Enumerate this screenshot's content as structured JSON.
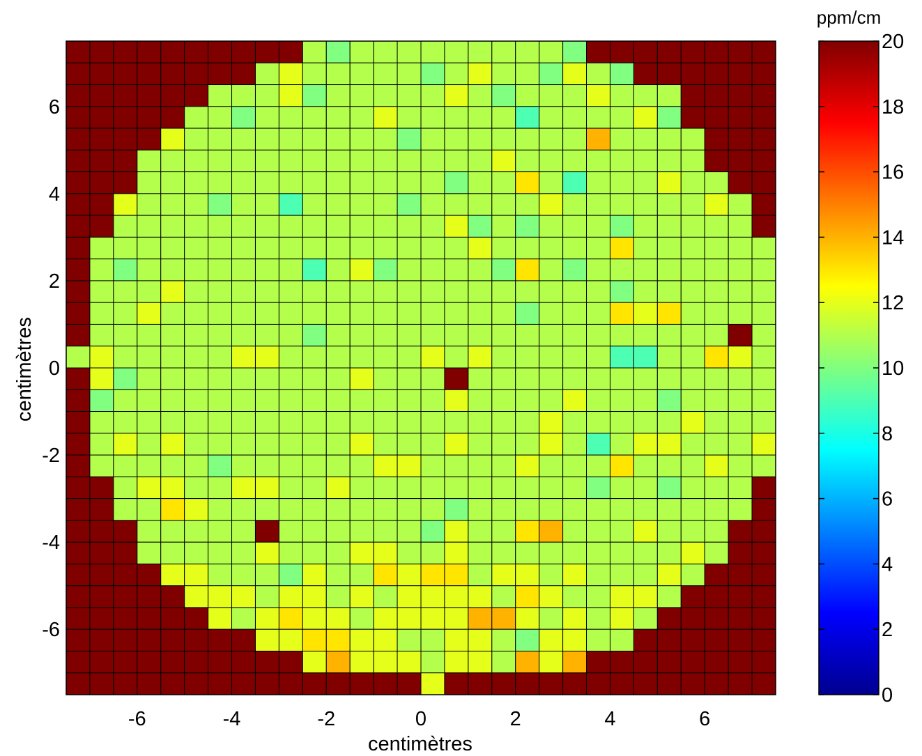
{
  "chart_data": {
    "type": "heatmap",
    "xlabel": "centimètres",
    "ylabel": "centimètres",
    "xlim": [
      -7.5,
      7.5
    ],
    "ylim": [
      -7.5,
      7.5
    ],
    "cell_size_cm": 0.5,
    "x_ticks": [
      -6,
      -4,
      -2,
      0,
      2,
      4,
      6
    ],
    "y_ticks": [
      6,
      4,
      2,
      0,
      -2,
      -4,
      -6
    ],
    "colorbar": {
      "title": "ppm/cm",
      "colormap": "jet",
      "range": [
        0,
        20
      ],
      "ticks": [
        20,
        18,
        16,
        14,
        12,
        10,
        8,
        6,
        4,
        2,
        0
      ]
    },
    "row_order": "top row (y = 7.25) first; columns left (x = -7.25) to right (x = 7.25)",
    "grid": true,
    "values": [
      [
        20,
        20,
        20,
        20,
        20,
        20,
        20,
        20,
        20,
        20,
        11,
        10,
        11,
        11,
        11,
        11,
        11,
        11,
        11,
        11,
        11,
        10,
        20,
        20,
        20,
        20,
        20,
        20,
        20,
        20
      ],
      [
        20,
        20,
        20,
        20,
        20,
        20,
        20,
        20,
        11,
        12,
        11,
        11,
        11,
        11,
        11,
        10,
        11,
        12,
        11,
        11,
        10,
        12,
        11,
        10,
        20,
        20,
        20,
        20,
        20,
        20
      ],
      [
        20,
        20,
        20,
        20,
        20,
        20,
        11,
        11,
        11,
        12,
        10,
        11,
        11,
        11,
        11,
        11,
        12,
        11,
        10,
        11,
        11,
        11,
        12,
        11,
        11,
        11,
        20,
        20,
        20,
        20
      ],
      [
        20,
        20,
        20,
        20,
        20,
        11,
        11,
        10,
        11,
        11,
        11,
        11,
        11,
        12,
        11,
        11,
        11,
        11,
        11,
        9,
        11,
        11,
        11,
        11,
        12,
        10,
        20,
        20,
        20,
        20
      ],
      [
        20,
        20,
        20,
        20,
        12,
        11,
        11,
        11,
        11,
        11,
        11,
        11,
        11,
        11,
        10,
        11,
        11,
        11,
        11,
        11,
        11,
        11,
        14,
        11,
        11,
        11,
        11,
        20,
        20,
        20
      ],
      [
        20,
        20,
        20,
        11,
        11,
        11,
        11,
        11,
        11,
        11,
        11,
        11,
        11,
        11,
        11,
        11,
        11,
        11,
        12,
        11,
        11,
        11,
        11,
        11,
        11,
        11,
        11,
        20,
        20,
        20
      ],
      [
        20,
        20,
        20,
        11,
        11,
        11,
        11,
        11,
        11,
        11,
        11,
        11,
        11,
        11,
        11,
        11,
        10,
        11,
        11,
        13,
        11,
        9,
        11,
        11,
        11,
        12,
        11,
        11,
        20,
        20
      ],
      [
        20,
        20,
        12,
        11,
        11,
        11,
        10,
        11,
        11,
        9,
        11,
        11,
        11,
        11,
        10,
        11,
        11,
        11,
        11,
        11,
        12,
        11,
        11,
        11,
        11,
        11,
        11,
        12,
        11,
        20
      ],
      [
        20,
        20,
        11,
        11,
        11,
        11,
        11,
        11,
        11,
        11,
        11,
        11,
        11,
        11,
        11,
        11,
        12,
        10,
        11,
        10,
        11,
        11,
        11,
        10,
        11,
        11,
        11,
        11,
        11,
        20
      ],
      [
        20,
        11,
        11,
        11,
        11,
        11,
        11,
        11,
        11,
        11,
        11,
        11,
        11,
        11,
        11,
        11,
        11,
        12,
        11,
        11,
        11,
        11,
        11,
        13,
        11,
        11,
        11,
        11,
        11,
        11
      ],
      [
        20,
        11,
        10,
        11,
        11,
        11,
        11,
        11,
        11,
        11,
        9,
        11,
        12,
        10,
        11,
        11,
        11,
        11,
        10,
        13,
        11,
        10,
        11,
        11,
        11,
        11,
        11,
        11,
        11,
        11
      ],
      [
        20,
        11,
        11,
        11,
        12,
        11,
        11,
        11,
        11,
        11,
        11,
        11,
        11,
        11,
        11,
        11,
        11,
        11,
        11,
        11,
        11,
        11,
        11,
        10,
        11,
        11,
        11,
        11,
        11,
        11
      ],
      [
        20,
        11,
        11,
        12,
        11,
        11,
        11,
        11,
        11,
        11,
        11,
        11,
        11,
        11,
        11,
        11,
        11,
        11,
        11,
        10,
        11,
        11,
        11,
        13,
        12,
        13,
        11,
        11,
        11,
        11
      ],
      [
        20,
        11,
        11,
        11,
        11,
        11,
        11,
        11,
        11,
        11,
        10,
        11,
        11,
        11,
        11,
        11,
        11,
        11,
        11,
        11,
        11,
        11,
        11,
        11,
        11,
        11,
        11,
        11,
        20,
        11
      ],
      [
        11,
        12,
        11,
        11,
        11,
        11,
        11,
        12,
        12,
        11,
        11,
        11,
        11,
        11,
        11,
        12,
        11,
        12,
        11,
        11,
        11,
        11,
        11,
        9,
        9,
        11,
        11,
        13,
        12,
        11
      ],
      [
        20,
        12,
        10,
        11,
        11,
        11,
        11,
        11,
        11,
        11,
        11,
        11,
        12,
        11,
        11,
        11,
        20,
        11,
        11,
        11,
        11,
        11,
        11,
        11,
        11,
        11,
        11,
        11,
        11,
        11
      ],
      [
        20,
        10,
        11,
        11,
        11,
        11,
        11,
        11,
        11,
        11,
        11,
        11,
        11,
        11,
        11,
        11,
        12,
        11,
        11,
        11,
        11,
        12,
        11,
        11,
        11,
        10,
        11,
        11,
        11,
        11
      ],
      [
        20,
        11,
        11,
        11,
        11,
        11,
        11,
        11,
        11,
        11,
        11,
        11,
        11,
        11,
        11,
        11,
        11,
        11,
        11,
        11,
        12,
        11,
        11,
        11,
        11,
        11,
        12,
        11,
        11,
        11
      ],
      [
        20,
        11,
        12,
        11,
        12,
        11,
        11,
        11,
        11,
        11,
        11,
        11,
        12,
        11,
        11,
        11,
        12,
        11,
        11,
        11,
        12,
        11,
        9,
        11,
        12,
        12,
        11,
        11,
        11,
        12
      ],
      [
        20,
        11,
        11,
        11,
        11,
        11,
        10,
        11,
        11,
        11,
        11,
        11,
        11,
        12,
        12,
        11,
        11,
        11,
        11,
        12,
        11,
        11,
        11,
        13,
        11,
        11,
        11,
        12,
        11,
        11
      ],
      [
        20,
        20,
        11,
        12,
        12,
        11,
        11,
        12,
        12,
        11,
        11,
        12,
        11,
        11,
        11,
        11,
        11,
        11,
        11,
        11,
        11,
        11,
        10,
        11,
        11,
        10,
        11,
        11,
        11,
        20
      ],
      [
        20,
        20,
        11,
        11,
        13,
        12,
        11,
        11,
        11,
        11,
        11,
        11,
        11,
        11,
        11,
        11,
        10,
        11,
        11,
        11,
        11,
        11,
        11,
        11,
        11,
        11,
        11,
        11,
        11,
        20
      ],
      [
        20,
        20,
        20,
        11,
        11,
        11,
        11,
        11,
        20,
        11,
        11,
        11,
        11,
        11,
        11,
        10,
        12,
        11,
        11,
        13,
        14,
        11,
        11,
        11,
        12,
        11,
        11,
        11,
        20,
        20
      ],
      [
        20,
        20,
        20,
        11,
        11,
        11,
        11,
        11,
        12,
        11,
        11,
        11,
        12,
        12,
        11,
        11,
        12,
        11,
        11,
        11,
        11,
        11,
        11,
        11,
        11,
        11,
        12,
        11,
        20,
        20
      ],
      [
        20,
        20,
        20,
        20,
        12,
        12,
        11,
        11,
        11,
        10,
        12,
        11,
        11,
        13,
        12,
        13,
        13,
        11,
        12,
        12,
        11,
        12,
        11,
        11,
        11,
        12,
        11,
        20,
        20,
        20
      ],
      [
        20,
        20,
        20,
        20,
        20,
        12,
        12,
        12,
        11,
        12,
        12,
        11,
        12,
        11,
        12,
        12,
        12,
        12,
        11,
        13,
        12,
        11,
        11,
        12,
        12,
        11,
        20,
        20,
        20,
        20
      ],
      [
        20,
        20,
        20,
        20,
        20,
        20,
        12,
        11,
        12,
        13,
        12,
        12,
        11,
        12,
        12,
        12,
        12,
        14,
        14,
        12,
        11,
        12,
        11,
        12,
        11,
        20,
        20,
        20,
        20,
        20
      ],
      [
        20,
        20,
        20,
        20,
        20,
        20,
        20,
        20,
        12,
        12,
        13,
        13,
        12,
        12,
        11,
        11,
        12,
        12,
        11,
        10,
        12,
        12,
        11,
        11,
        20,
        20,
        20,
        20,
        20,
        20
      ],
      [
        20,
        20,
        20,
        20,
        20,
        20,
        20,
        20,
        20,
        20,
        12,
        14,
        12,
        12,
        12,
        11,
        12,
        12,
        11,
        14,
        12,
        14,
        20,
        20,
        20,
        20,
        20,
        20,
        20,
        20
      ],
      [
        20,
        20,
        20,
        20,
        20,
        20,
        20,
        20,
        20,
        20,
        20,
        20,
        20,
        20,
        20,
        12,
        20,
        20,
        20,
        20,
        20,
        20,
        20,
        20,
        20,
        20,
        20,
        20,
        20,
        20
      ]
    ]
  }
}
